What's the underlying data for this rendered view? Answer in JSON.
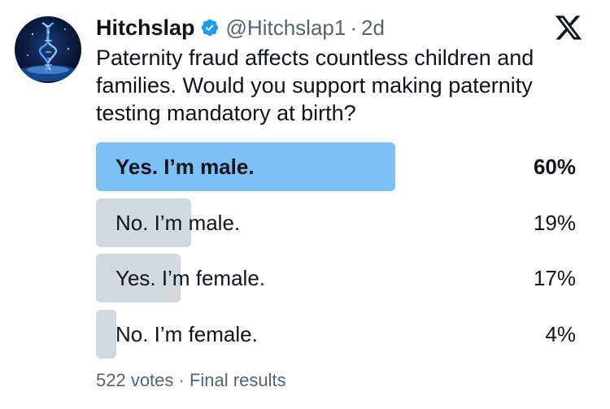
{
  "tweet": {
    "author_name": "Hitchslap",
    "handle": "@Hitchslap1",
    "separator": "·",
    "time": "2d",
    "text": "Paternity fraud affects countless children and families. Would you support making paternity testing mandatory at birth?"
  },
  "poll": {
    "options": [
      {
        "label": "Yes. I’m male.",
        "percent_label": "60%",
        "percent": 60,
        "winner": true
      },
      {
        "label": "No. I’m male.",
        "percent_label": "19%",
        "percent": 19,
        "winner": false
      },
      {
        "label": "Yes. I’m female.",
        "percent_label": "17%",
        "percent": 17,
        "winner": false
      },
      {
        "label": "No. I’m female.",
        "percent_label": "4%",
        "percent": 4,
        "winner": false
      }
    ],
    "votes": "522 votes",
    "separator": "·",
    "status": "Final results"
  },
  "colors": {
    "winner_bar": "#7cc1f6",
    "bar": "#cfd9de",
    "verified": "#1d9bf0",
    "secondary_text": "#536471"
  },
  "icons": {
    "verified": "verified-badge-icon",
    "platform": "x-logo-icon"
  }
}
